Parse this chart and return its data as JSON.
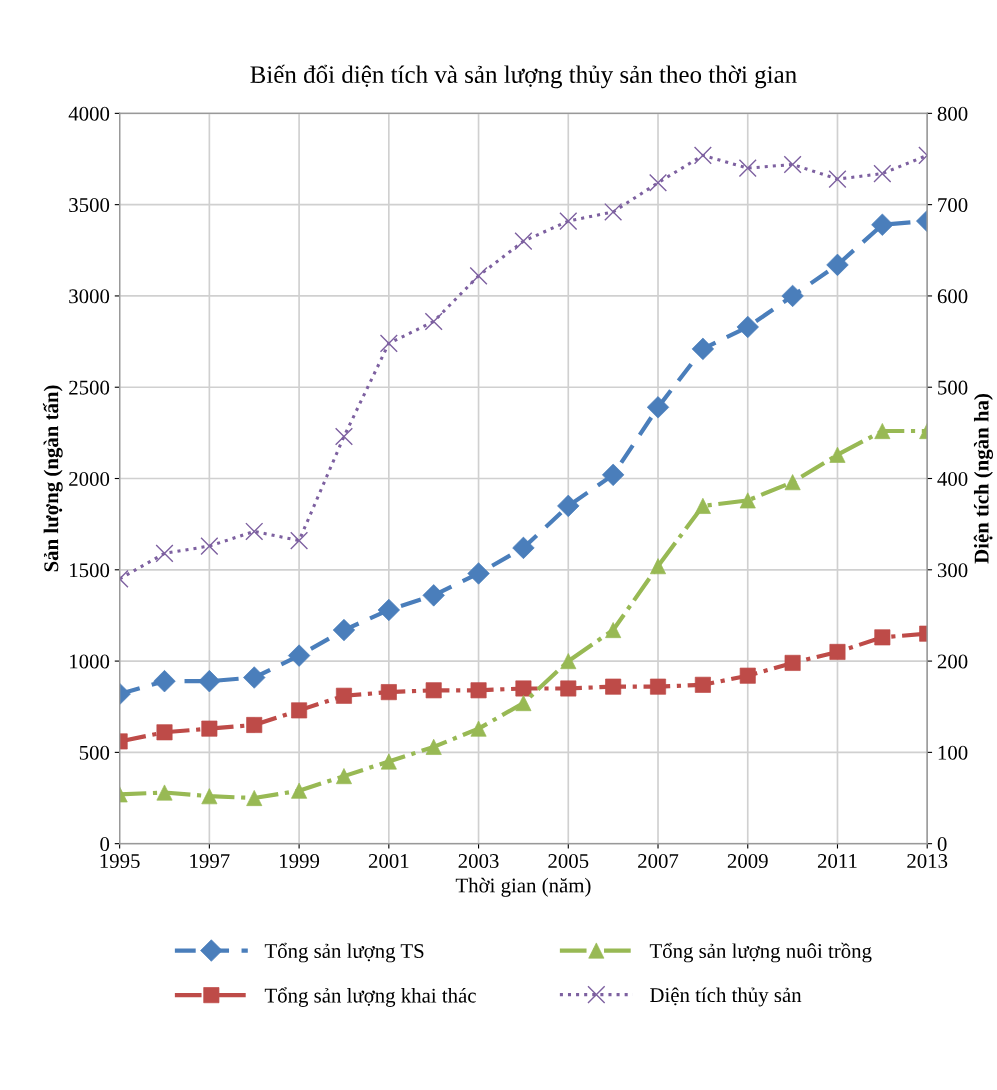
{
  "chart_data": {
    "type": "line",
    "title": "Biến đổi diện tích và sản lượng thủy sản theo thời gian",
    "xlabel": "Thời gian (năm)",
    "ylabel": "Sản lượng (ngàn tấn)",
    "y2label": "Diện tích (ngàn ha)",
    "x": [
      1995,
      1996,
      1997,
      1998,
      1999,
      2000,
      2001,
      2002,
      2003,
      2004,
      2005,
      2006,
      2007,
      2008,
      2009,
      2010,
      2011,
      2012,
      2013
    ],
    "series": [
      {
        "name": "Tổng sản lượng TS",
        "color": "#4a7ebb",
        "marker": "diamond",
        "line_style": "dashed",
        "values": [
          820,
          890,
          890,
          910,
          1030,
          1170,
          1280,
          1360,
          1480,
          1620,
          1850,
          2020,
          2390,
          2710,
          2830,
          3000,
          3170,
          3390,
          3410
        ]
      },
      {
        "name": "Tổng sản lượng khai thác",
        "color": "#be4b48",
        "marker": "square",
        "line_style": "dashdot",
        "values": [
          560,
          610,
          630,
          650,
          730,
          810,
          830,
          840,
          840,
          850,
          850,
          860,
          860,
          870,
          920,
          990,
          1050,
          1130,
          1150
        ]
      },
      {
        "name": "Tổng sản lượng nuôi trồng",
        "color": "#98b954",
        "marker": "triangle",
        "line_style": "dashdot",
        "values": [
          270,
          280,
          260,
          250,
          290,
          370,
          450,
          530,
          630,
          770,
          1000,
          1170,
          1520,
          1850,
          1880,
          1980,
          2130,
          2260,
          2260
        ]
      },
      {
        "name": "Diện tích thủy sản",
        "color": "#7d60a0",
        "marker": "cross",
        "line_style": "dotted",
        "axis": "y2",
        "values": [
          290,
          318,
          326,
          342,
          332,
          446,
          548,
          572,
          622,
          660,
          682,
          692,
          724,
          754,
          740,
          744,
          728,
          734,
          754
        ]
      }
    ],
    "xlim": [
      1995,
      2013
    ],
    "xticks": [
      1995,
      1997,
      1999,
      2001,
      2003,
      2005,
      2007,
      2009,
      2011,
      2013
    ],
    "ylim": [
      0,
      4000
    ],
    "yticks": [
      0,
      500,
      1000,
      1500,
      2000,
      2500,
      3000,
      3500,
      4000
    ],
    "y2lim": [
      0,
      800
    ],
    "y2ticks": [
      0,
      100,
      200,
      300,
      400,
      500,
      600,
      700,
      800
    ],
    "grid": true,
    "legend": "bottom"
  }
}
